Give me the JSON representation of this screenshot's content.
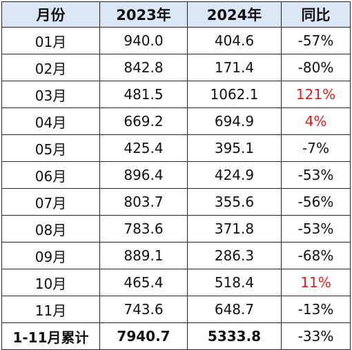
{
  "table": {
    "headers": [
      "月份",
      "2023年",
      "2024年",
      "同比"
    ],
    "rows": [
      {
        "month": "01月",
        "y2023": "940.0",
        "y2024": "404.6",
        "yoy": "-57%",
        "positive": false
      },
      {
        "month": "02月",
        "y2023": "842.8",
        "y2024": "171.4",
        "yoy": "-80%",
        "positive": false
      },
      {
        "month": "03月",
        "y2023": "481.5",
        "y2024": "1062.1",
        "yoy": "121%",
        "positive": true
      },
      {
        "month": "04月",
        "y2023": "669.2",
        "y2024": "694.9",
        "yoy": "4%",
        "positive": true
      },
      {
        "month": "05月",
        "y2023": "425.4",
        "y2024": "395.1",
        "yoy": "-7%",
        "positive": false
      },
      {
        "month": "06月",
        "y2023": "896.4",
        "y2024": "424.9",
        "yoy": "-53%",
        "positive": false
      },
      {
        "month": "07月",
        "y2023": "803.7",
        "y2024": "355.6",
        "yoy": "-56%",
        "positive": false
      },
      {
        "month": "08月",
        "y2023": "783.6",
        "y2024": "371.8",
        "yoy": "-53%",
        "positive": false
      },
      {
        "month": "09月",
        "y2023": "889.1",
        "y2024": "286.3",
        "yoy": "-68%",
        "positive": false
      },
      {
        "month": "10月",
        "y2023": "465.4",
        "y2024": "518.4",
        "yoy": "11%",
        "positive": true
      },
      {
        "month": "11月",
        "y2023": "743.6",
        "y2024": "648.7",
        "yoy": "-13%",
        "positive": false
      }
    ],
    "total": {
      "month": "1-11月累计",
      "y2023": "7940.7",
      "y2024": "5333.8",
      "yoy": "-33%"
    }
  },
  "colors": {
    "header_bg": "#dbe7f4",
    "positive_text": "#e02020",
    "border": "#222222"
  }
}
